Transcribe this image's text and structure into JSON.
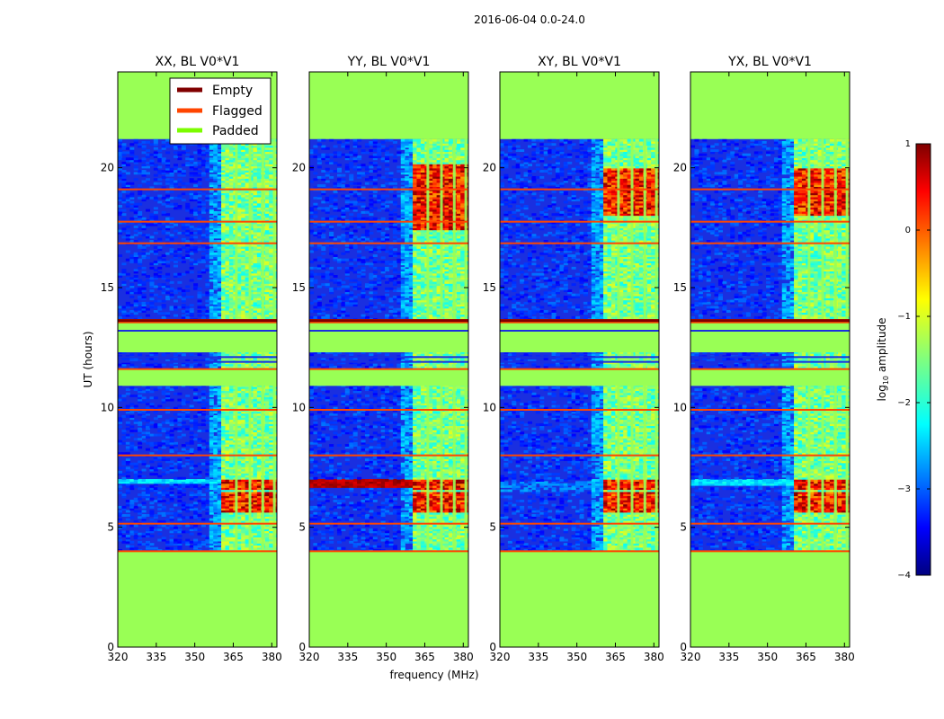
{
  "figure": {
    "suptitle": "2016-06-04 0.0-24.0",
    "xlabel": "frequency (MHz)",
    "ylabel": "UT (hours)",
    "colorbar_label": "log",
    "colorbar_label_sub": "10",
    "colorbar_label_suffix": " amplitude",
    "colors": {
      "padded": "#99ff55",
      "flagged": "#ff4500",
      "empty": "#7f0000",
      "background_noise": "#1a2fe0",
      "frame": "#000000"
    }
  },
  "legend": {
    "placement": "top-right of first panel",
    "items": [
      {
        "label": "Empty",
        "color": "#800000"
      },
      {
        "label": "Flagged",
        "color": "#ff4500"
      },
      {
        "label": "Padded",
        "color": "#7cfc00"
      }
    ]
  },
  "chart_data": {
    "type": "heatmap",
    "xlim": [
      320,
      382
    ],
    "ylim": [
      0,
      24
    ],
    "xticks": [
      "320",
      "335",
      "350",
      "365",
      "380"
    ],
    "xtick_values": [
      320,
      335,
      350,
      365,
      380
    ],
    "yticks": [
      "0",
      "5",
      "10",
      "15",
      "20"
    ],
    "ytick_values": [
      0,
      5,
      10,
      15,
      20
    ],
    "panels": [
      {
        "title": "XX, BL V0*V1",
        "strong_band": [
          360,
          382
        ],
        "strong_rows": [
          [
            5.6,
            6.5
          ],
          [
            6.55,
            7.0
          ]
        ],
        "broadband_row": [
          6.8,
          7.0
        ],
        "broadband_level": 0.3
      },
      {
        "title": "YY, BL V0*V1",
        "strong_band": [
          360,
          382
        ],
        "strong_rows": [
          [
            5.6,
            6.5
          ],
          [
            6.55,
            7.0
          ],
          [
            17.4,
            20.2
          ]
        ],
        "broadband_row": [
          6.7,
          7.0
        ],
        "broadband_level": 0.9
      },
      {
        "title": "XY, BL V0*V1",
        "strong_band": [
          360,
          382
        ],
        "strong_rows": [
          [
            5.6,
            6.5
          ],
          [
            6.55,
            7.0
          ],
          [
            18.0,
            20.0
          ]
        ],
        "broadband_row": [
          6.5,
          6.9
        ],
        "broadband_level": 0.2
      },
      {
        "title": "YX, BL V0*V1",
        "strong_band": [
          360,
          382
        ],
        "strong_rows": [
          [
            5.6,
            6.5
          ],
          [
            6.55,
            7.0
          ],
          [
            18.0,
            20.0
          ]
        ],
        "broadband_row": [
          6.75,
          7.0
        ],
        "broadband_level": 0.3
      }
    ],
    "padded_ranges_hours": [
      [
        0,
        4.0
      ],
      [
        21.2,
        24.0
      ],
      [
        10.9,
        11.6
      ],
      [
        12.3,
        13.6
      ]
    ],
    "flagged_rows_hours": [
      4.0,
      5.15,
      8.0,
      9.9,
      11.6,
      13.55,
      13.65,
      16.85,
      17.75,
      19.1
    ],
    "channel_gaps_mhz": [
      366.2,
      371.5,
      376.5,
      381.0
    ],
    "colorbar": {
      "range": [
        -4,
        1
      ],
      "ticks": [
        "−4",
        "−3",
        "−2",
        "−1",
        "0",
        "1"
      ],
      "tick_values": [
        -4,
        -3,
        -2,
        -1,
        0,
        1
      ]
    }
  }
}
